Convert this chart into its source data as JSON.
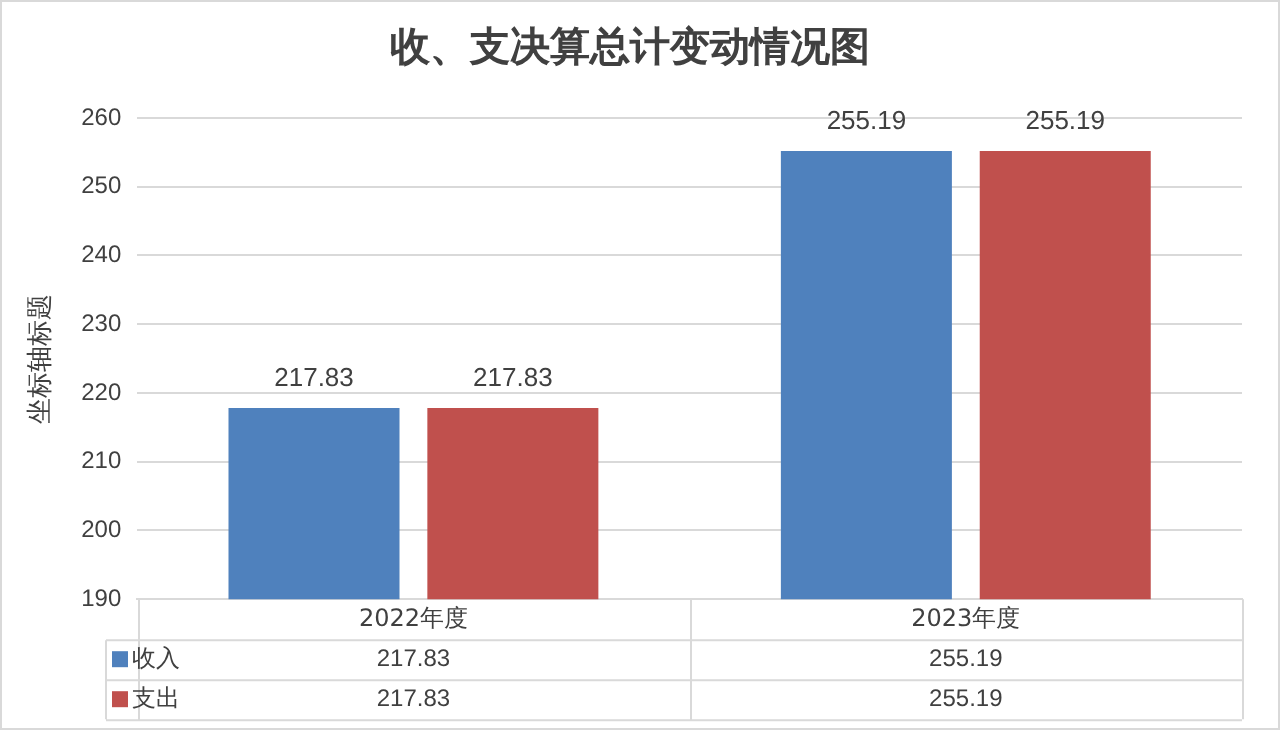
{
  "chart_data": {
    "type": "bar",
    "title": "收、支决算总计变动情况图",
    "ylabel": "坐标轴标题",
    "categories": [
      "2022年度",
      "2023年度"
    ],
    "series": [
      {
        "name": "收入",
        "color": "#4f81bd",
        "values": [
          217.83,
          255.19
        ]
      },
      {
        "name": "支出",
        "color": "#c0504d",
        "values": [
          217.83,
          255.19
        ]
      }
    ],
    "ylim": [
      190,
      260
    ],
    "yticks": [
      190,
      200,
      210,
      220,
      230,
      240,
      250,
      260
    ],
    "grid": "y",
    "data_labels": true,
    "legend": "bottom",
    "annotations": [
      "217.83",
      "255.19",
      "217.83",
      "255.19"
    ]
  }
}
